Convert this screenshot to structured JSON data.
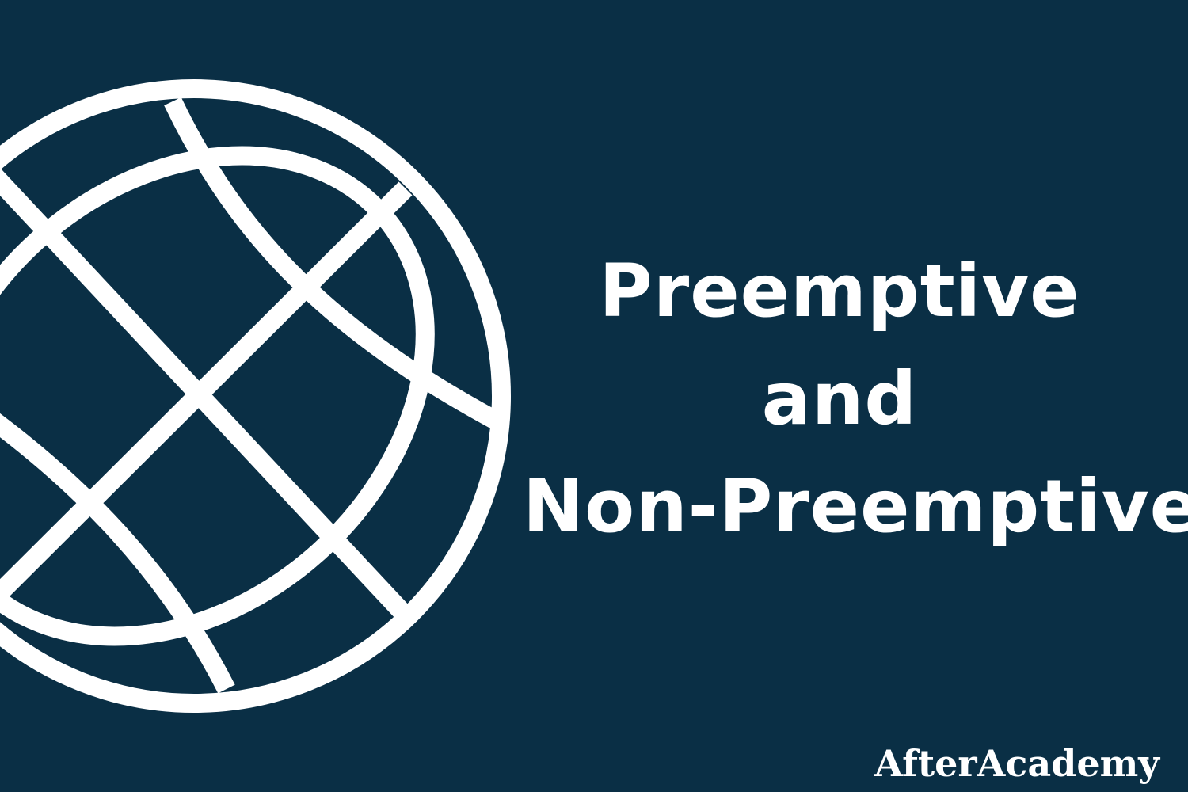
{
  "theme": {
    "background": "#0a2f45",
    "foreground": "#ffffff"
  },
  "graphic": {
    "icon": "globe-icon"
  },
  "title": {
    "line1": "Preemptive",
    "line2": "and",
    "line3": "Non-Preemptive"
  },
  "brand": {
    "name": "AfterAcademy"
  }
}
